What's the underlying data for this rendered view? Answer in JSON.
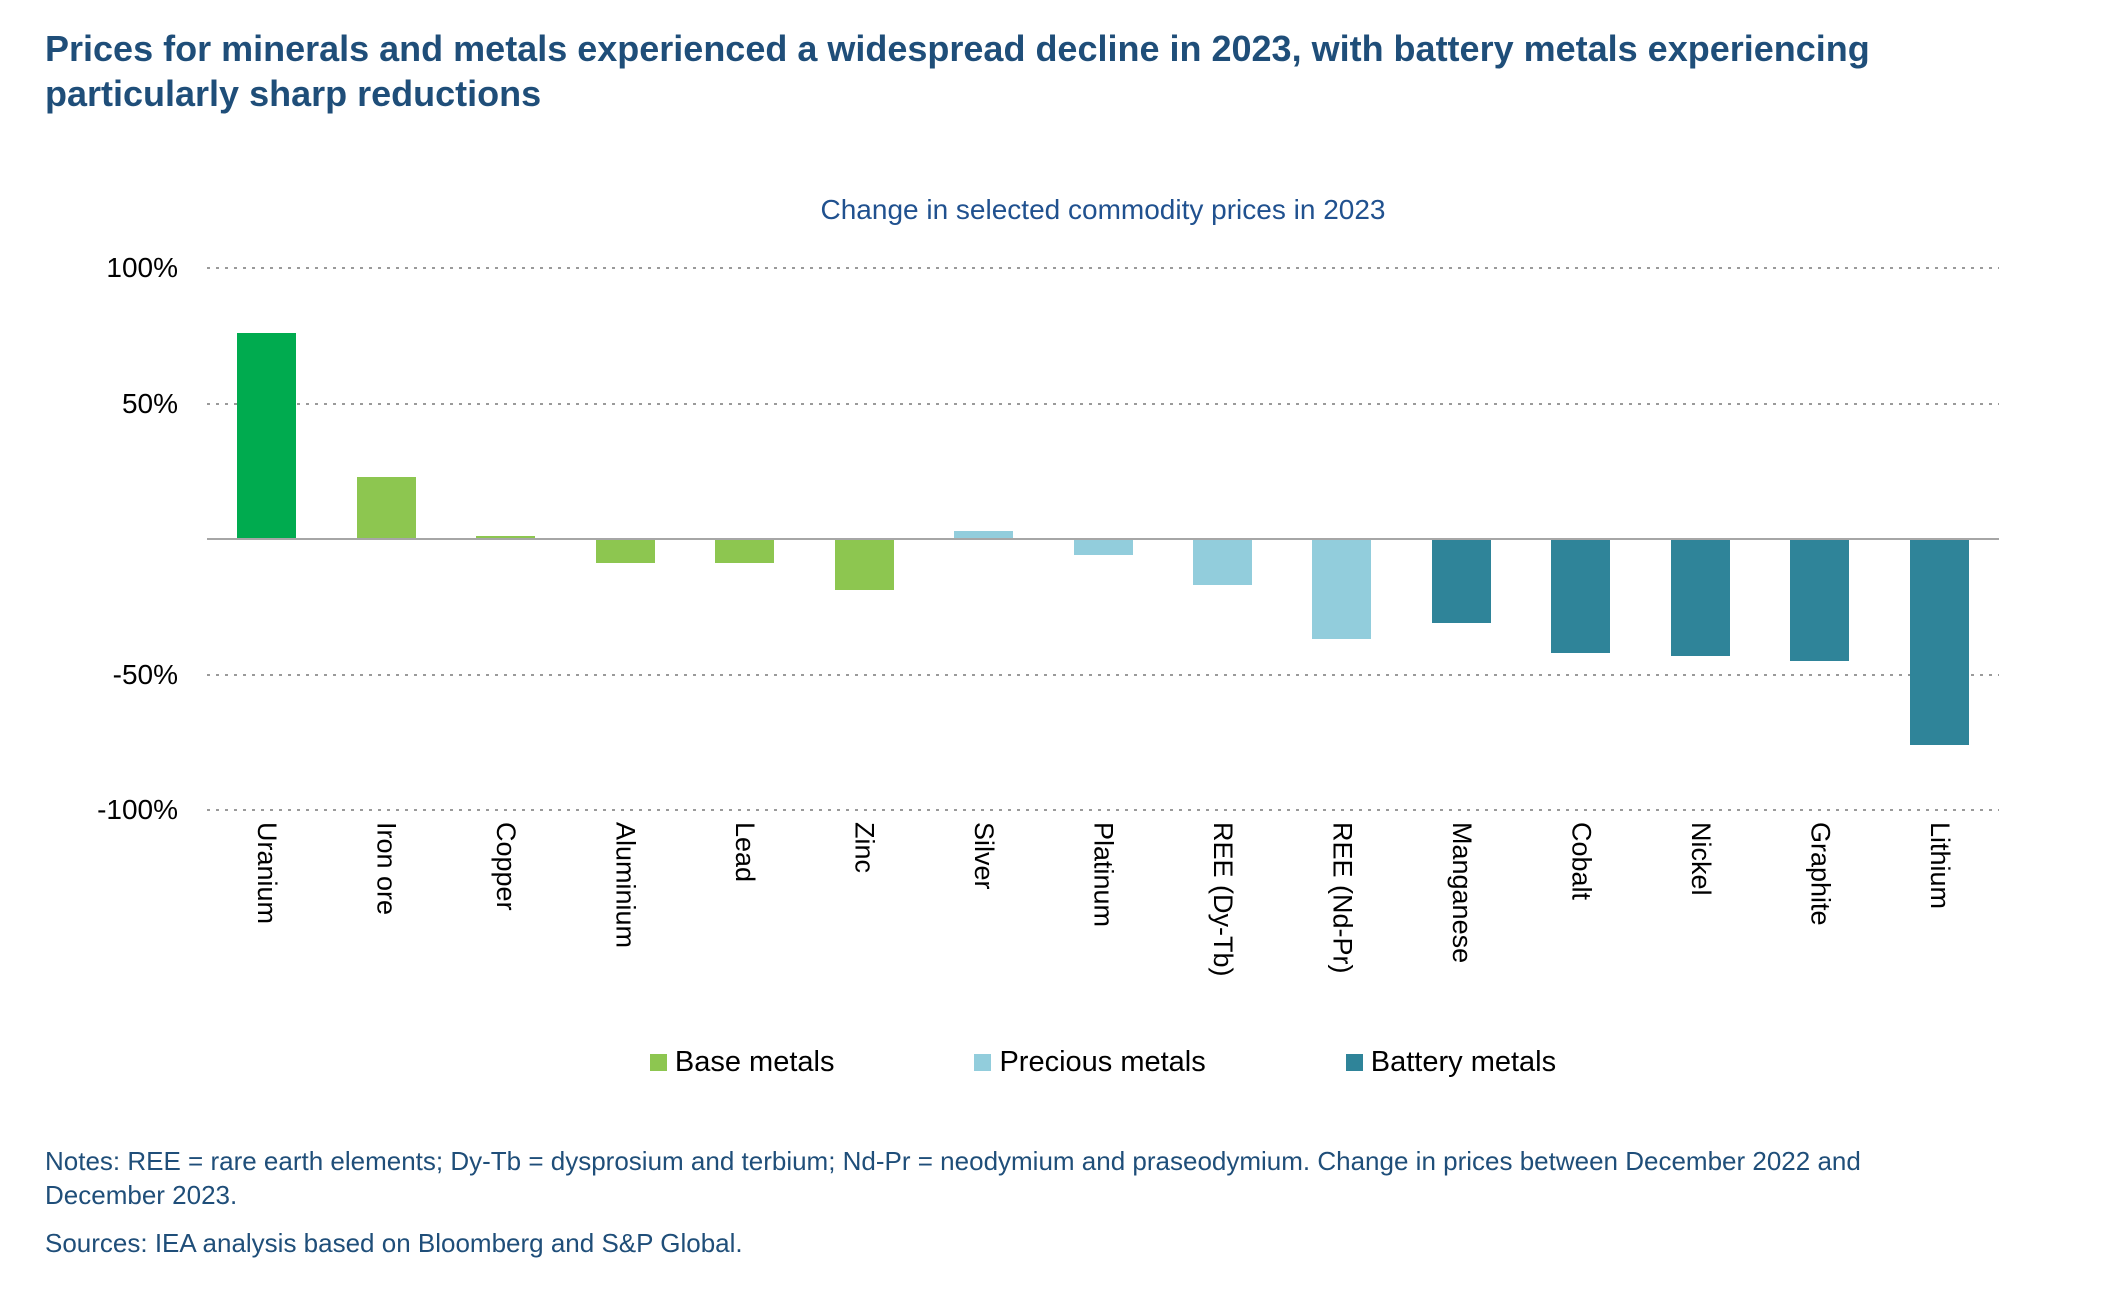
{
  "header": {
    "title": "Prices for minerals and metals experienced a widespread decline in 2023, with battery metals experiencing particularly sharp reductions"
  },
  "chart_data": {
    "type": "bar",
    "title": "Change in selected commodity prices in 2023",
    "categories": [
      "Uranium",
      "Iron ore",
      "Copper",
      "Aluminium",
      "Lead",
      "Zinc",
      "Silver",
      "Platinum",
      "REE (Dy-Tb)",
      "REE (Nd-Pr)",
      "Manganese",
      "Cobalt",
      "Nickel",
      "Graphite",
      "Lithium"
    ],
    "values": [
      76,
      23,
      1,
      -9,
      -9,
      -19,
      3,
      -6,
      -17,
      -37,
      -31,
      -42,
      -43,
      -45,
      -76
    ],
    "unit": "%",
    "groups": [
      "uranium",
      "base",
      "base",
      "base",
      "base",
      "base",
      "precious",
      "precious",
      "precious",
      "precious",
      "battery",
      "battery",
      "battery",
      "battery",
      "battery"
    ],
    "colors": {
      "uranium": "#00AB4F",
      "base": "#8DC650",
      "precious": "#92CDDC",
      "battery": "#2F8499"
    },
    "ylim": [
      -100,
      100
    ],
    "yticks": [
      {
        "label": "100%",
        "value": 100
      },
      {
        "label": "50%",
        "value": 50
      },
      {
        "label": "-50%",
        "value": -50
      },
      {
        "label": "-100%",
        "value": -100
      }
    ],
    "gridlines": [
      100,
      50,
      0,
      -50,
      -100
    ],
    "grid": "horizontal dotted",
    "axis_line_color": "#A6A6A6",
    "legend": {
      "position": "bottom",
      "items": [
        {
          "label": "Base metals",
          "color": "#8DC650"
        },
        {
          "label": "Precious metals",
          "color": "#92CDDC"
        },
        {
          "label": "Battery metals",
          "color": "#2F8499"
        }
      ]
    }
  },
  "footer": {
    "notes": "Notes: REE = rare earth elements; Dy-Tb = dysprosium and terbium; Nd-Pr = neodymium and praseodymium. Change in prices between December 2022 and December 2023.",
    "sources": "Sources: IEA analysis based on Bloomberg and S&P Global."
  }
}
